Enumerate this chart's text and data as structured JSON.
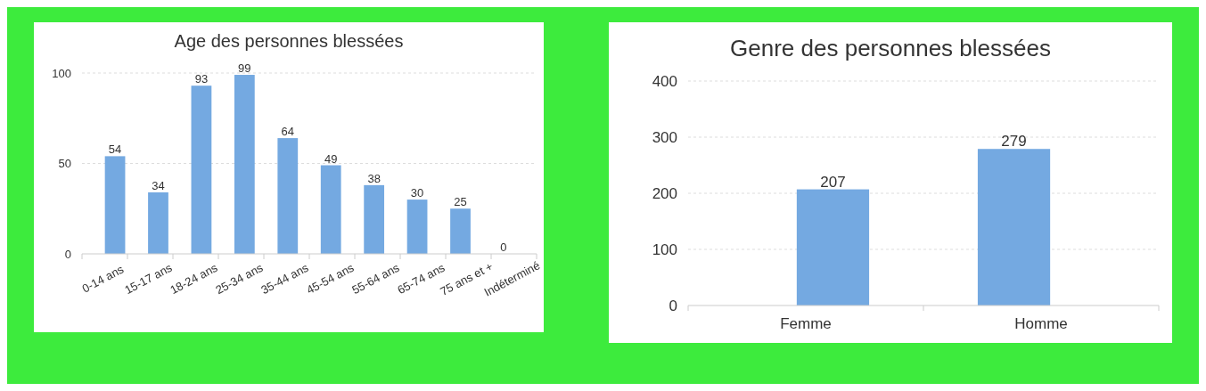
{
  "chart_data": [
    {
      "type": "bar",
      "title": "Age des personnes blessées",
      "categories": [
        "0-14 ans",
        "15-17 ans",
        "18-24 ans",
        "25-34 ans",
        "35-44 ans",
        "45-54 ans",
        "55-64 ans",
        "65-74 ans",
        "75 ans et +",
        "Indéterminé"
      ],
      "values": [
        54,
        34,
        93,
        99,
        64,
        49,
        38,
        30,
        25,
        0
      ],
      "color": "#74a9e1",
      "ylim": [
        0,
        100
      ],
      "yticks": [
        0,
        50,
        100
      ],
      "grid": "y",
      "data_labels": true
    },
    {
      "type": "bar",
      "title": "Genre des personnes blessées",
      "categories": [
        "Femme",
        "Homme"
      ],
      "values": [
        207,
        279
      ],
      "color": "#74a9e1",
      "ylim": [
        0,
        400
      ],
      "yticks": [
        0,
        100,
        200,
        300,
        400
      ],
      "grid": "y",
      "data_labels": true
    }
  ]
}
